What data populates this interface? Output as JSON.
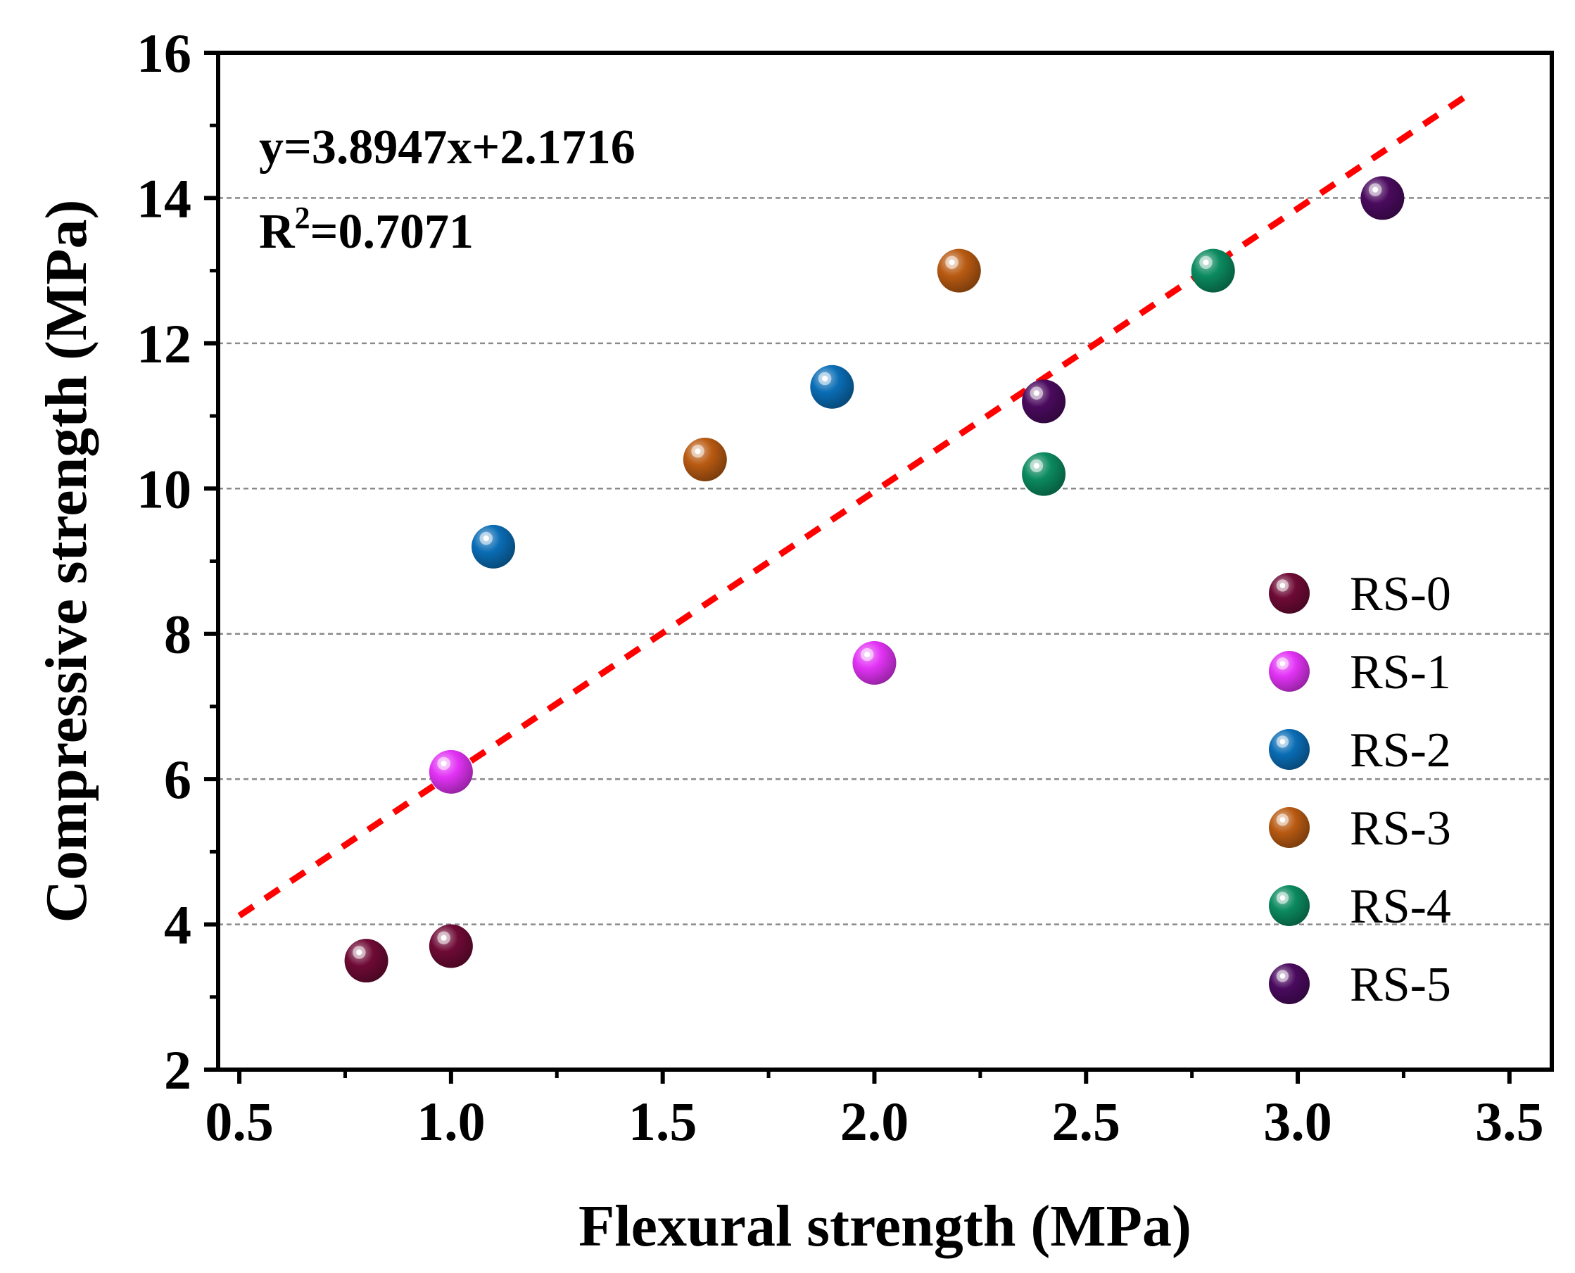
{
  "chart_data": {
    "type": "scatter",
    "xlabel": "Flexural strength (MPa)",
    "ylabel": "Compressive strength (MPa)",
    "xlim": [
      0.45,
      3.6
    ],
    "ylim": [
      2,
      16
    ],
    "x_ticks": [
      0.5,
      1.0,
      1.5,
      2.0,
      2.5,
      3.0,
      3.5
    ],
    "y_ticks": [
      2,
      4,
      6,
      8,
      10,
      12,
      14,
      16
    ],
    "x_tick_labels": [
      "0.5",
      "1.0",
      "1.5",
      "2.0",
      "2.5",
      "3.0",
      "3.5"
    ],
    "y_tick_labels": [
      "2",
      "4",
      "6",
      "8",
      "10",
      "12",
      "14",
      "16"
    ],
    "grid": "horizontal dashed at major y ticks",
    "legend_position": "right",
    "series": [
      {
        "name": "RS-0",
        "color": "#6e0a35",
        "points": [
          {
            "x": 0.8,
            "y": 3.5
          },
          {
            "x": 1.0,
            "y": 3.7
          }
        ]
      },
      {
        "name": "RS-1",
        "color": "#e233f5",
        "points": [
          {
            "x": 1.0,
            "y": 6.1
          },
          {
            "x": 2.0,
            "y": 7.6
          }
        ]
      },
      {
        "name": "RS-2",
        "color": "#0a6db5",
        "points": [
          {
            "x": 1.1,
            "y": 9.2
          },
          {
            "x": 1.9,
            "y": 11.4
          }
        ]
      },
      {
        "name": "RS-3",
        "color": "#b85a12",
        "points": [
          {
            "x": 1.6,
            "y": 10.4
          },
          {
            "x": 2.2,
            "y": 13.0
          }
        ]
      },
      {
        "name": "RS-4",
        "color": "#0b8a60",
        "points": [
          {
            "x": 2.4,
            "y": 10.2
          },
          {
            "x": 2.8,
            "y": 13.0
          }
        ]
      },
      {
        "name": "RS-5",
        "color": "#4a0a5e",
        "points": [
          {
            "x": 2.4,
            "y": 11.2
          },
          {
            "x": 3.2,
            "y": 14.0
          }
        ]
      }
    ],
    "fit": {
      "slope": 3.8947,
      "intercept": 2.1716,
      "x_range": [
        0.5,
        3.4
      ],
      "color": "#ff0000",
      "equation_label": "y=3.8947x+2.1716",
      "r2_prefix": "R",
      "r2_sup": "2",
      "r2_value": "=0.7071"
    }
  }
}
